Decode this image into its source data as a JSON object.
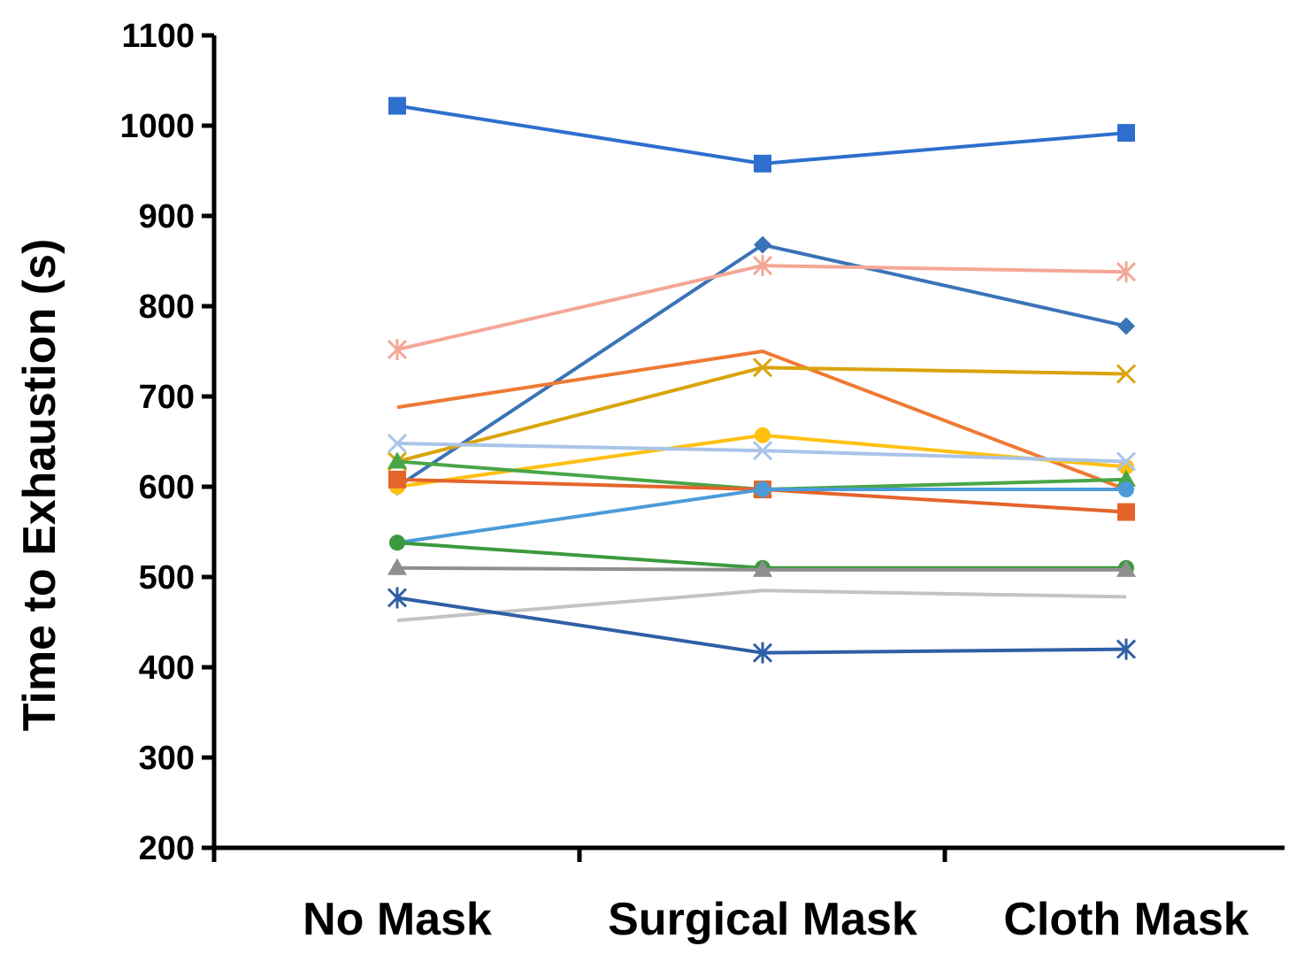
{
  "chart_data": {
    "type": "line",
    "categories": [
      "No Mask",
      "Surgical Mask",
      "Cloth Mask"
    ],
    "ylabel": "Time to Exhaustion  (s)",
    "xlabel": "",
    "ylim": [
      200,
      1100
    ],
    "yticks": [
      200,
      300,
      400,
      500,
      600,
      700,
      800,
      900,
      1000,
      1100
    ],
    "grid": false,
    "legend": "none",
    "series": [
      {
        "values": [
          1022,
          958,
          992
        ],
        "color": "#2e6fce",
        "marker": "square"
      },
      {
        "values": [
          600,
          868,
          778
        ],
        "color": "#3a73b8",
        "marker": "diamond"
      },
      {
        "values": [
          752,
          845,
          838
        ],
        "color": "#f4a796",
        "marker": "star"
      },
      {
        "values": [
          688,
          750,
          597
        ],
        "color": "#ee7a35",
        "marker": "none"
      },
      {
        "values": [
          628,
          732,
          725
        ],
        "color": "#d9a40c",
        "marker": "x"
      },
      {
        "values": [
          600,
          657,
          622
        ],
        "color": "#ffc010",
        "marker": "circle"
      },
      {
        "values": [
          648,
          640,
          628
        ],
        "color": "#a9c4e8",
        "marker": "x"
      },
      {
        "values": [
          628,
          597,
          608
        ],
        "color": "#48a647",
        "marker": "triangle"
      },
      {
        "values": [
          608,
          597,
          572
        ],
        "color": "#e4642c",
        "marker": "square"
      },
      {
        "values": [
          538,
          597,
          597
        ],
        "color": "#4b9bd8",
        "marker": "circle"
      },
      {
        "values": [
          538,
          510,
          510
        ],
        "color": "#3c9a3c",
        "marker": "circle"
      },
      {
        "values": [
          510,
          508,
          508
        ],
        "color": "#8f8f8f",
        "marker": "triangle"
      },
      {
        "values": [
          452,
          485,
          478
        ],
        "color": "#c3c3c3",
        "marker": "none"
      },
      {
        "values": [
          477,
          416,
          420
        ],
        "color": "#2f5fa6",
        "marker": "star"
      }
    ]
  }
}
